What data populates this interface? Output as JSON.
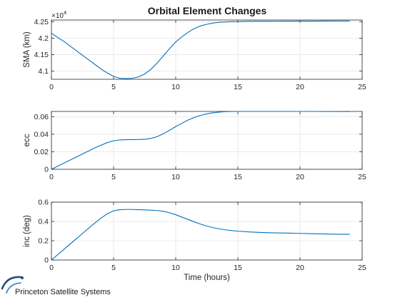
{
  "figure": {
    "background": "#ffffff",
    "axis_color": "#262626",
    "grid_color": "#e6e6e6"
  },
  "logo": {
    "text": "Princeton Satellite Systems",
    "color": "#1f4f8f"
  },
  "chart_data": [
    {
      "type": "line",
      "title": "Orbital Element Changes",
      "xlabel": "",
      "ylabel": "SMA (km)",
      "y_exponent_label": "×10",
      "y_exponent_power": "4",
      "xlim": [
        0,
        25
      ],
      "ylim": [
        4.075,
        4.255
      ],
      "xticks": [
        0,
        5,
        10,
        15,
        20,
        25
      ],
      "yticks": [
        4.1,
        4.15,
        4.2,
        4.25
      ],
      "xtick_labels": [
        "0",
        "5",
        "10",
        "15",
        "20",
        "25"
      ],
      "ytick_labels": [
        "4.1",
        "4.15",
        "4.2",
        "4.25"
      ],
      "grid": true,
      "color": "#0072bd",
      "series": [
        {
          "x": [
            0,
            0.5,
            1,
            1.5,
            2,
            2.5,
            3,
            3.5,
            4,
            4.5,
            5,
            5.5,
            6,
            6.5,
            7,
            7.5,
            8,
            8.5,
            9,
            9.5,
            10,
            10.5,
            11,
            11.5,
            12,
            12.5,
            13,
            13.5,
            14,
            14.5,
            15,
            15.5,
            16,
            17,
            18,
            19,
            20,
            21,
            22,
            23,
            24
          ],
          "y": [
            4.215,
            4.202,
            4.19,
            4.176,
            4.162,
            4.148,
            4.134,
            4.12,
            4.106,
            4.094,
            4.084,
            4.078,
            4.077,
            4.078,
            4.082,
            4.091,
            4.105,
            4.124,
            4.146,
            4.168,
            4.188,
            4.204,
            4.218,
            4.229,
            4.237,
            4.242,
            4.246,
            4.248,
            4.249,
            4.25,
            4.25,
            4.2505,
            4.251,
            4.251,
            4.2512,
            4.2513,
            4.2515,
            4.2516,
            4.2518,
            4.252,
            4.252
          ]
        }
      ]
    },
    {
      "type": "line",
      "title": "",
      "xlabel": "",
      "ylabel": "ecc",
      "xlim": [
        0,
        25
      ],
      "ylim": [
        0,
        0.066
      ],
      "xticks": [
        0,
        5,
        10,
        15,
        20,
        25
      ],
      "yticks": [
        0,
        0.02,
        0.04,
        0.06
      ],
      "xtick_labels": [
        "0",
        "5",
        "10",
        "15",
        "20",
        "25"
      ],
      "ytick_labels": [
        "0",
        "0.02",
        "0.04",
        "0.06"
      ],
      "grid": true,
      "color": "#0072bd",
      "series": [
        {
          "x": [
            0,
            0.5,
            1,
            1.5,
            2,
            2.5,
            3,
            3.5,
            4,
            4.5,
            5,
            5.5,
            6,
            6.5,
            7,
            7.5,
            8,
            8.5,
            9,
            9.5,
            10,
            10.5,
            11,
            11.5,
            12,
            12.5,
            13,
            13.5,
            14,
            14.5,
            15,
            16,
            17,
            18,
            19,
            20,
            21,
            22,
            23,
            24
          ],
          "y": [
            0,
            0.0035,
            0.007,
            0.0105,
            0.014,
            0.0175,
            0.021,
            0.0245,
            0.0275,
            0.0305,
            0.0325,
            0.0335,
            0.0338,
            0.0339,
            0.034,
            0.0343,
            0.0352,
            0.0372,
            0.0405,
            0.0445,
            0.0487,
            0.0525,
            0.0562,
            0.0592,
            0.0615,
            0.0632,
            0.0645,
            0.0652,
            0.0657,
            0.0659,
            0.066,
            0.066,
            0.066,
            0.066,
            0.066,
            0.066,
            0.066,
            0.0659,
            0.0659,
            0.0658
          ]
        }
      ]
    },
    {
      "type": "line",
      "title": "",
      "xlabel": "Time (hours)",
      "ylabel": "inc (deg)",
      "xlim": [
        0,
        25
      ],
      "ylim": [
        0,
        0.6
      ],
      "xticks": [
        0,
        5,
        10,
        15,
        20,
        25
      ],
      "yticks": [
        0,
        0.2,
        0.4,
        0.6
      ],
      "xtick_labels": [
        "0",
        "5",
        "10",
        "15",
        "20",
        "25"
      ],
      "ytick_labels": [
        "0",
        "0.2",
        "0.4",
        "0.6"
      ],
      "grid": true,
      "color": "#0072bd",
      "series": [
        {
          "x": [
            0,
            0.5,
            1,
            1.5,
            2,
            2.5,
            3,
            3.5,
            4,
            4.5,
            5,
            5.5,
            6,
            6.5,
            7,
            7.5,
            8,
            8.5,
            9,
            9.5,
            10,
            10.5,
            11,
            11.5,
            12,
            12.5,
            13,
            13.5,
            14,
            14.5,
            15,
            16,
            17,
            18,
            19,
            20,
            21,
            22,
            23,
            24
          ],
          "y": [
            0,
            0.055,
            0.11,
            0.165,
            0.22,
            0.275,
            0.33,
            0.385,
            0.435,
            0.48,
            0.51,
            0.522,
            0.524,
            0.524,
            0.522,
            0.52,
            0.517,
            0.513,
            0.505,
            0.49,
            0.47,
            0.445,
            0.42,
            0.395,
            0.372,
            0.352,
            0.336,
            0.323,
            0.313,
            0.305,
            0.299,
            0.29,
            0.285,
            0.281,
            0.279,
            0.276,
            0.273,
            0.27,
            0.267,
            0.266
          ]
        }
      ]
    }
  ]
}
